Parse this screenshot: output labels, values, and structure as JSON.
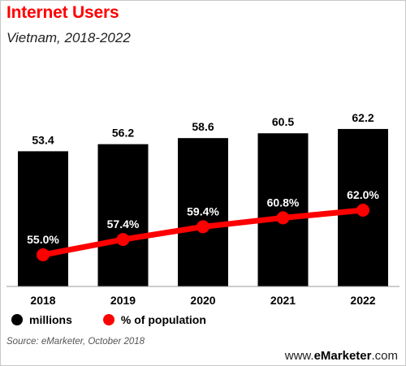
{
  "title": "Internet Users",
  "subtitle": "Vietnam, 2018-2022",
  "legend": {
    "millions": "millions",
    "percent": "% of population"
  },
  "source": "Source: eMarketer, October 2018",
  "brand_prefix": "www.",
  "brand_name": "eMarketer",
  "brand_suffix": ".com",
  "colors": {
    "title": "#ff0000",
    "bars": "#000000",
    "line": "#ff0000"
  },
  "chart_data": {
    "type": "bar",
    "categories": [
      "2018",
      "2019",
      "2020",
      "2021",
      "2022"
    ],
    "series": [
      {
        "name": "millions",
        "type": "bar",
        "values": [
          53.4,
          56.2,
          58.6,
          60.5,
          62.2
        ],
        "labels": [
          "53.4",
          "56.2",
          "58.6",
          "60.5",
          "62.2"
        ]
      },
      {
        "name": "% of population",
        "type": "line",
        "values": [
          55.0,
          57.4,
          59.4,
          60.8,
          62.0
        ],
        "labels": [
          "55.0%",
          "57.4%",
          "59.4%",
          "60.8%",
          "62.0%"
        ]
      }
    ]
  }
}
